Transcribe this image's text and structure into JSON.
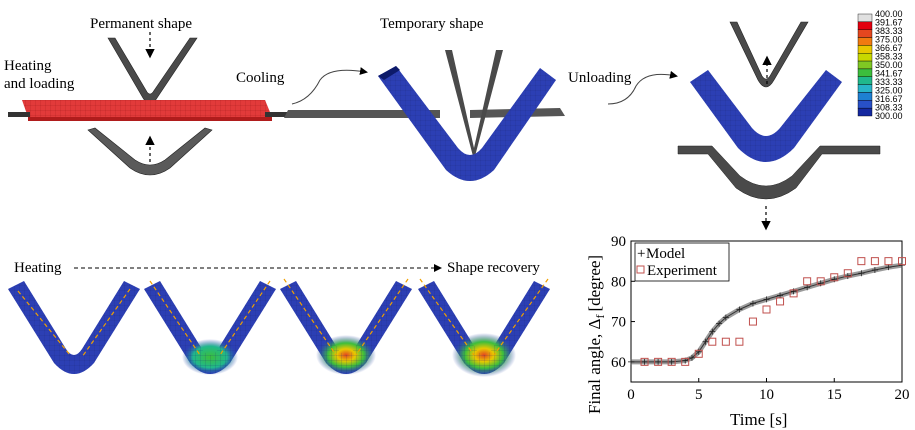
{
  "labels": {
    "permanent_shape": "Permanent shape",
    "heating_and_loading_1": "Heating",
    "heating_and_loading_2": "and loading",
    "cooling": "Cooling",
    "temporary_shape": "Temporary shape",
    "unloading": "Unloading",
    "heating": "Heating",
    "shape_recovery": "Shape recovery"
  },
  "colorbar": {
    "values": [
      "400.00",
      "391.67",
      "383.33",
      "375.00",
      "366.67",
      "358.33",
      "350.00",
      "341.67",
      "333.33",
      "325.00",
      "316.67",
      "308.33",
      "300.00"
    ],
    "colors": [
      "#e0e0e0",
      "#e3000f",
      "#e4471f",
      "#f07a10",
      "#e8c800",
      "#c8d800",
      "#7fc823",
      "#3cbe3c",
      "#20b88c",
      "#28b4c8",
      "#1e80d2",
      "#2850c8",
      "#1428a0"
    ]
  },
  "colors": {
    "hot_plate": "#e23a3a",
    "specimen_blue": "#2c3fb4",
    "tool_gray": "#4a4a4a",
    "dashed_orange": "#f0a000",
    "experiment_marker": "#c0504d"
  },
  "chart_data": {
    "type": "scatter",
    "xlabel": "Time [s]",
    "ylabel": "Final angle, Δ",
    "ylabel_sub": "f",
    "ylabel_unit": "[degree]",
    "xlim": [
      0,
      20
    ],
    "ylim": [
      55,
      90
    ],
    "xticks": [
      0,
      5,
      10,
      15,
      20
    ],
    "yticks": [
      60,
      70,
      80,
      90
    ],
    "legend_position": "top-left",
    "series": [
      {
        "name": "Model",
        "marker": "+",
        "x": [
          0,
          1,
          2,
          3,
          4,
          4.5,
          5,
          5.5,
          6,
          6.5,
          7,
          8,
          9,
          10,
          11,
          12,
          13,
          14,
          15,
          16,
          17,
          18,
          19,
          20
        ],
        "y": [
          60,
          60,
          60,
          60,
          60.3,
          61,
          62.5,
          65,
          67.5,
          69.5,
          71,
          73,
          74.5,
          75.5,
          76.5,
          77.5,
          78.5,
          79.5,
          80.5,
          81.3,
          82,
          82.8,
          83.5,
          84
        ]
      },
      {
        "name": "Experiment",
        "marker": "square",
        "x": [
          1,
          2,
          3,
          4,
          5,
          6,
          7,
          8,
          9,
          10,
          11,
          12,
          13,
          14,
          15,
          16,
          17,
          18,
          19,
          20
        ],
        "y": [
          60,
          60,
          60,
          60,
          62,
          65,
          65,
          65,
          70,
          73,
          75,
          77,
          80,
          80,
          81,
          82,
          85,
          85,
          85,
          85
        ]
      }
    ]
  }
}
